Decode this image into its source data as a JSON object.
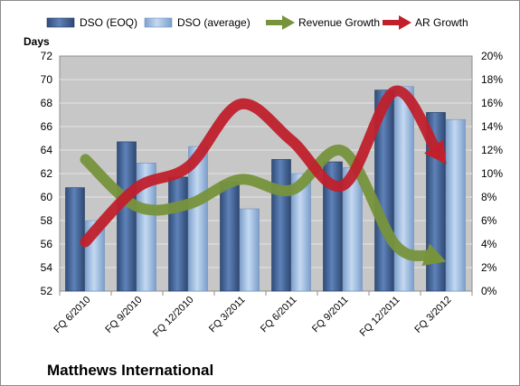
{
  "chart_data": {
    "type": "bar",
    "title": "Matthews International",
    "ylabel": "Days",
    "ylim": [
      52,
      72
    ],
    "y_ticks": [
      52,
      54,
      56,
      58,
      60,
      62,
      64,
      66,
      68,
      70,
      72
    ],
    "y2lim": [
      0,
      20
    ],
    "y2_ticks": [
      "0%",
      "2%",
      "4%",
      "6%",
      "8%",
      "10%",
      "12%",
      "14%",
      "16%",
      "18%",
      "20%"
    ],
    "grid": true,
    "legend": "top",
    "categories": [
      "FQ 6/2010",
      "FQ 9/2010",
      "FQ 12/2010",
      "FQ 3/2011",
      "FQ 6/2011",
      "FQ 9/2011",
      "FQ 12/2011",
      "FQ 3/2012"
    ],
    "series": [
      {
        "name": "DSO (EOQ)",
        "type": "bar",
        "axis": "left",
        "color": "#4a6a9c",
        "values": [
          60.8,
          64.7,
          61.7,
          61.3,
          63.2,
          63.0,
          69.1,
          67.2
        ]
      },
      {
        "name": "DSO (average)",
        "type": "bar",
        "axis": "left",
        "color": "#9ab9e0",
        "values": [
          58.0,
          62.9,
          64.3,
          59.0,
          62.0,
          62.5,
          69.4,
          66.6
        ]
      },
      {
        "name": "Revenue Growth",
        "type": "line",
        "axis": "right",
        "color": "#77933c",
        "values": [
          11.2,
          7.2,
          7.4,
          9.5,
          8.6,
          11.9,
          4.0,
          2.5
        ]
      },
      {
        "name": "AR Growth",
        "type": "line",
        "axis": "right",
        "color": "#c0202c",
        "values": [
          4.2,
          8.8,
          10.6,
          15.9,
          12.8,
          9.0,
          17.0,
          10.8
        ]
      }
    ]
  },
  "colors": {
    "plot_background": "#c7c7c7",
    "gridline": "#e6e6e6",
    "border": "#8c8c8c"
  }
}
